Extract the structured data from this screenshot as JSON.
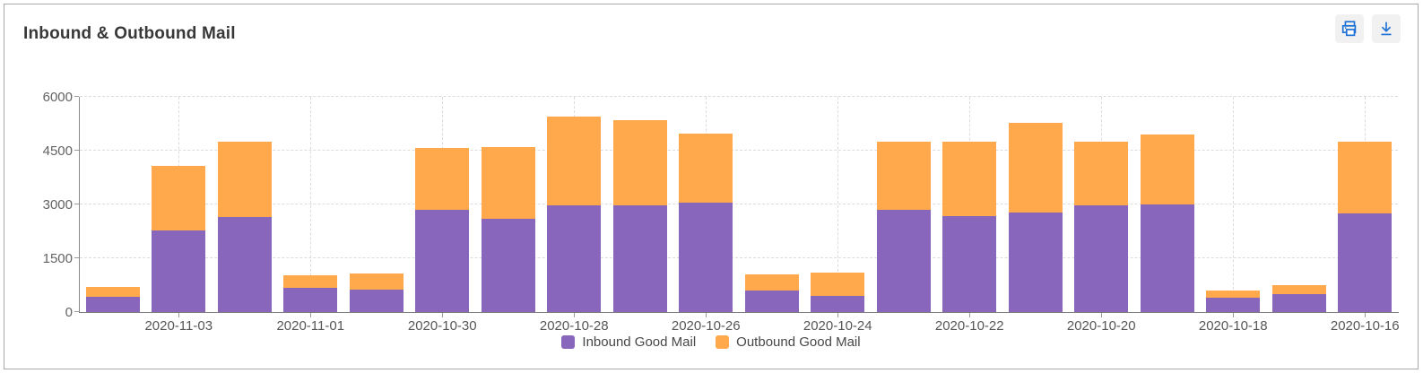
{
  "header": {
    "title": "Inbound & Outbound Mail",
    "buttons": [
      {
        "name": "print"
      },
      {
        "name": "download"
      }
    ]
  },
  "colors": {
    "inbound": "#8866BB",
    "outbound": "#FFA94C",
    "icon_blue": "#1c6fd4",
    "axis_line": "#8a8a8a",
    "grid_line": "#dcdcdc",
    "tick_text": "#5c5c5c"
  },
  "chart_data": {
    "type": "bar",
    "stacked": true,
    "title": "Inbound & Outbound Mail",
    "categories": [
      "2020-11-04",
      "2020-11-03",
      "2020-11-02",
      "2020-11-01",
      "2020-10-31",
      "2020-10-30",
      "2020-10-29",
      "2020-10-28",
      "2020-10-27",
      "2020-10-26",
      "2020-10-25",
      "2020-10-24",
      "2020-10-23",
      "2020-10-22",
      "2020-10-21",
      "2020-10-20",
      "2020-10-19",
      "2020-10-18",
      "2020-10-17",
      "2020-10-16"
    ],
    "x_tick_labels": [
      "2020-11-03",
      "2020-11-01",
      "2020-10-30",
      "2020-10-28",
      "2020-10-26",
      "2020-10-24",
      "2020-10-22",
      "2020-10-20",
      "2020-10-18",
      "2020-10-16"
    ],
    "labeled_indices": [
      1,
      3,
      5,
      7,
      9,
      11,
      13,
      15,
      17,
      19
    ],
    "series": [
      {
        "name": "Inbound Good Mail",
        "color": "#8866BB",
        "values": [
          420,
          2280,
          2650,
          670,
          620,
          2840,
          2610,
          2980,
          2980,
          3040,
          590,
          440,
          2860,
          2680,
          2780,
          2970,
          3010,
          400,
          500,
          2760
        ]
      },
      {
        "name": "Outbound Good Mail",
        "color": "#FFA94C",
        "values": [
          280,
          1790,
          2100,
          350,
          450,
          1740,
          2000,
          2470,
          2360,
          1940,
          460,
          650,
          1880,
          2060,
          2490,
          1770,
          1950,
          200,
          260,
          1990
        ]
      }
    ],
    "xlabel": "",
    "ylabel": "",
    "ylim": [
      0,
      6000
    ],
    "y_ticks": [
      0,
      1500,
      3000,
      4500,
      6000
    ],
    "grid": "dashed horizontal and vertical",
    "legend_position": "bottom"
  }
}
